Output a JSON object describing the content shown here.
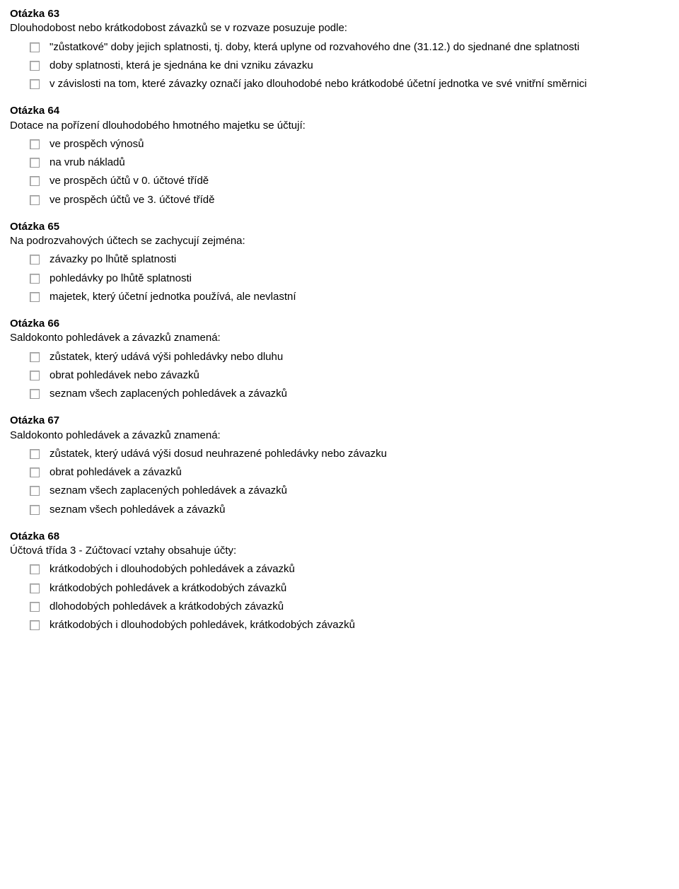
{
  "questions": [
    {
      "title": "Otázka 63",
      "text": "Dlouhodobost nebo krátkodobost závazků se v rozvaze posuzuje podle:",
      "items": [
        {
          "type": "option",
          "label": "\"zůstatkové\" doby jejich splatnosti, tj. doby, která uplyne od rozvahového dne (31.12.) do sjednané dne splatnosti"
        },
        {
          "type": "option",
          "label": "doby splatnosti, která je sjednána ke dni vzniku závazku"
        },
        {
          "type": "option",
          "label": "v závislosti na tom, které závazky označí jako dlouhodobé nebo krátkodobé účetní jednotka ve své vnitřní směrnici"
        }
      ]
    },
    {
      "title": "Otázka 64",
      "text": "Dotace na pořízení dlouhodobého hmotného majetku se účtují:",
      "items": [
        {
          "type": "option",
          "label": "ve prospěch výnosů"
        },
        {
          "type": "option",
          "label": "na vrub nákladů"
        },
        {
          "type": "option",
          "label": "ve prospěch účtů v 0. účtové třídě"
        },
        {
          "type": "option",
          "label": "ve prospěch účtů ve 3. účtové třídě"
        }
      ]
    },
    {
      "title": "Otázka 65",
      "text": "Na podrozvahových účtech se zachycují zejména:",
      "items": [
        {
          "type": "option",
          "label": "závazky po lhůtě splatnosti"
        },
        {
          "type": "option",
          "label": "pohledávky po lhůtě splatnosti"
        },
        {
          "type": "option",
          "label": "majetek, který účetní jednotka používá, ale nevlastní"
        }
      ]
    },
    {
      "title": "Otázka 66",
      "text": "Saldokonto pohledávek a závazků znamená:",
      "items": [
        {
          "type": "option",
          "label": "zůstatek, který udává výši pohledávky nebo dluhu"
        },
        {
          "type": "option",
          "label": "obrat pohledávek nebo závazků"
        },
        {
          "type": "option",
          "label": "seznam všech zaplacených pohledávek a závazků"
        }
      ]
    },
    {
      "title": "Otázka 67",
      "text": "Saldokonto pohledávek a závazků znamená:",
      "items": [
        {
          "type": "option",
          "label": "zůstatek, který udává výši dosud neuhrazené pohledávky nebo závazku"
        },
        {
          "type": "option",
          "label": "obrat pohledávek a závazků"
        },
        {
          "type": "option",
          "label": "seznam všech zaplacených pohledávek a závazků"
        },
        {
          "type": "option",
          "label": "seznam všech pohledávek a závazků"
        }
      ]
    },
    {
      "title": "Otázka 68",
      "text": "Účtová třída 3 - Zúčtovací vztahy obsahuje účty:",
      "items": [
        {
          "type": "option",
          "label": "krátkodobých i dlouhodobých pohledávek a závazků"
        },
        {
          "type": "option",
          "label": "krátkodobých pohledávek a krátkodobých závazků"
        },
        {
          "type": "option",
          "label": "dlohodobých pohledávek a krátkodobých závazků"
        },
        {
          "type": "option",
          "label": "krátkodobých i dlouhodobých pohledávek, krátkodobých závazků"
        }
      ]
    }
  ]
}
